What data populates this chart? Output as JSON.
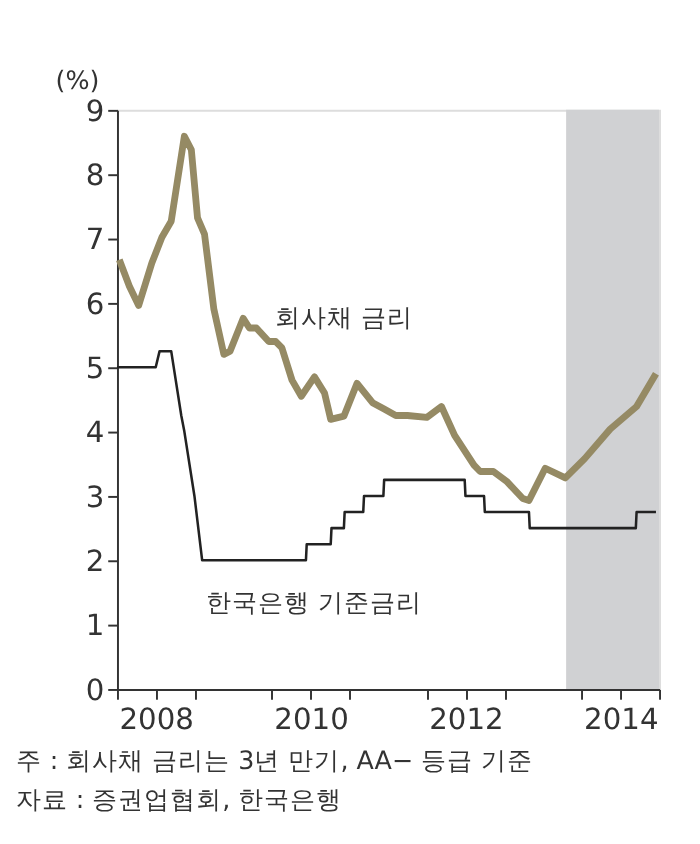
{
  "chart_data": {
    "type": "line",
    "ylabel": "(%)",
    "annotations": [
      "주 : 회사채 금리는 3년 만기, AA− 등급 기준",
      "자료 : 증권업협회, 한국은행"
    ],
    "xlim": [
      2008,
      2015
    ],
    "ylim": [
      0,
      9
    ],
    "yticks": [
      0,
      1,
      2,
      3,
      4,
      5,
      6,
      7,
      8,
      9
    ],
    "xticks": [
      {
        "value": 2008,
        "label": null
      },
      {
        "value": 2008.5,
        "label": "2008"
      },
      {
        "value": 2009,
        "label": null
      },
      {
        "value": 2010,
        "label": null
      },
      {
        "value": 2010.5,
        "label": "2010"
      },
      {
        "value": 2011,
        "label": null
      },
      {
        "value": 2012,
        "label": null
      },
      {
        "value": 2012.5,
        "label": "2012"
      },
      {
        "value": 2013,
        "label": null
      },
      {
        "value": 2014,
        "label": null
      },
      {
        "value": 2014.5,
        "label": "2014"
      },
      {
        "value": 2015,
        "label": null
      }
    ],
    "grid": false,
    "legend": false,
    "marker": "none",
    "line_style": "solid",
    "bands": [
      {
        "axis": "x",
        "from": 2013.8,
        "to": 2015.0,
        "color": "#d0d1d3"
      }
    ],
    "series": [
      {
        "name": "회사채 금리",
        "color": "#958a64",
        "x": [
          2008.03,
          2008.16,
          2008.28,
          2008.45,
          2008.58,
          2008.7,
          2008.87,
          2008.96,
          2009.04,
          2009.13,
          2009.25,
          2009.38,
          2009.46,
          2009.63,
          2009.71,
          2009.8,
          2009.96,
          2010.05,
          2010.13,
          2010.26,
          2010.38,
          2010.55,
          2010.68,
          2010.76,
          2010.93,
          2011.1,
          2011.3,
          2011.45,
          2011.6,
          2011.75,
          2012.0,
          2012.19,
          2012.36,
          2012.61,
          2012.69,
          2012.86,
          2013.03,
          2013.24,
          2013.32,
          2013.53,
          2013.79,
          2014.04,
          2014.37,
          2014.71,
          2014.96
        ],
        "values": [
          6.67,
          6.26,
          5.96,
          6.62,
          7.02,
          7.27,
          8.59,
          8.38,
          7.32,
          7.07,
          5.91,
          5.2,
          5.25,
          5.76,
          5.61,
          5.61,
          5.4,
          5.4,
          5.3,
          4.8,
          4.55,
          4.85,
          4.6,
          4.19,
          4.24,
          4.75,
          4.45,
          4.35,
          4.25,
          4.25,
          4.22,
          4.39,
          3.94,
          3.48,
          3.38,
          3.38,
          3.23,
          2.96,
          2.93,
          3.43,
          3.28,
          3.58,
          4.04,
          4.39,
          4.9
        ]
      },
      {
        "name": "한국은행 기준금리",
        "color": "#222222",
        "x": [
          2008.0,
          2008.5,
          2008.55,
          2008.7,
          2008.83,
          2008.87,
          2009.0,
          2009.1,
          2010.44,
          2010.45,
          2010.76,
          2010.77,
          2010.93,
          2010.94,
          2011.18,
          2011.19,
          2011.44,
          2011.45,
          2012.49,
          2012.5,
          2012.74,
          2012.75,
          2013.32,
          2013.33,
          2014.7,
          2014.71,
          2014.96
        ],
        "values": [
          5,
          5,
          5.25,
          5.25,
          4.25,
          4,
          3,
          2,
          2,
          2.25,
          2.25,
          2.5,
          2.5,
          2.75,
          2.75,
          3,
          3,
          3.25,
          3.25,
          3,
          3,
          2.75,
          2.75,
          2.5,
          2.5,
          2.75,
          2.75
        ]
      }
    ]
  }
}
